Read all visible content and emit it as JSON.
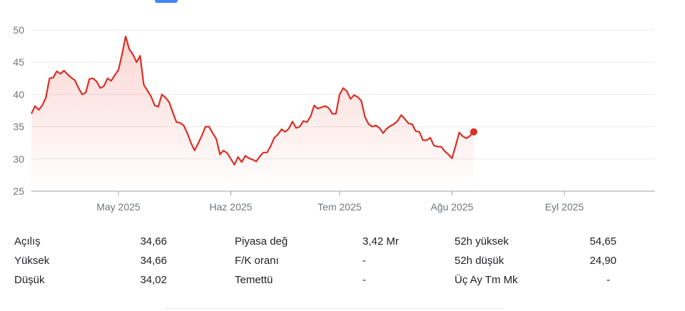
{
  "chart_data": {
    "type": "area",
    "y_ticks": [
      "50",
      "45",
      "40",
      "35",
      "30",
      "25"
    ],
    "y_tick_values": [
      50,
      45,
      40,
      35,
      30,
      25
    ],
    "ylim": [
      25,
      51
    ],
    "x_ticks": [
      "May 2025",
      "Haz 2025",
      "Tem 2025",
      "Ağu 2025",
      "Eyl 2025"
    ],
    "x_tick_dates": [
      "2025-05-01",
      "2025-06-01",
      "2025-07-01",
      "2025-08-01",
      "2025-09-01"
    ],
    "xlim": [
      "2025-04-07",
      "2025-09-26"
    ],
    "grid": true,
    "line_color": "#d93025",
    "series": [
      {
        "points": [
          [
            "2025-04-07",
            37.0
          ],
          [
            "2025-04-08",
            38.2
          ],
          [
            "2025-04-09",
            37.6
          ],
          [
            "2025-04-10",
            38.3
          ],
          [
            "2025-04-11",
            39.5
          ],
          [
            "2025-04-12",
            42.5
          ],
          [
            "2025-04-13",
            42.6
          ],
          [
            "2025-04-14",
            43.6
          ],
          [
            "2025-04-15",
            43.2
          ],
          [
            "2025-04-16",
            43.7
          ],
          [
            "2025-04-17",
            43.1
          ],
          [
            "2025-04-18",
            42.6
          ],
          [
            "2025-04-19",
            42.2
          ],
          [
            "2025-04-20",
            41.0
          ],
          [
            "2025-04-21",
            40.0
          ],
          [
            "2025-04-22",
            40.3
          ],
          [
            "2025-04-23",
            42.4
          ],
          [
            "2025-04-24",
            42.5
          ],
          [
            "2025-04-25",
            42.0
          ],
          [
            "2025-04-26",
            41.0
          ],
          [
            "2025-04-27",
            41.3
          ],
          [
            "2025-04-28",
            42.5
          ],
          [
            "2025-04-29",
            42.1
          ],
          [
            "2025-04-30",
            43.0
          ],
          [
            "2025-05-01",
            43.8
          ],
          [
            "2025-05-02",
            46.2
          ],
          [
            "2025-05-03",
            49.0
          ],
          [
            "2025-05-04",
            47.0
          ],
          [
            "2025-05-05",
            46.2
          ],
          [
            "2025-05-06",
            45.0
          ],
          [
            "2025-05-07",
            46.0
          ],
          [
            "2025-05-08",
            41.5
          ],
          [
            "2025-05-09",
            40.6
          ],
          [
            "2025-05-10",
            39.7
          ],
          [
            "2025-05-11",
            38.3
          ],
          [
            "2025-05-12",
            38.1
          ],
          [
            "2025-05-13",
            40.0
          ],
          [
            "2025-05-14",
            39.5
          ],
          [
            "2025-05-15",
            38.8
          ],
          [
            "2025-05-16",
            37.2
          ],
          [
            "2025-05-17",
            35.7
          ],
          [
            "2025-05-18",
            35.6
          ],
          [
            "2025-05-19",
            35.2
          ],
          [
            "2025-05-20",
            34.0
          ],
          [
            "2025-05-21",
            32.5
          ],
          [
            "2025-05-22",
            31.3
          ],
          [
            "2025-05-23",
            32.4
          ],
          [
            "2025-05-24",
            33.6
          ],
          [
            "2025-05-25",
            35.0
          ],
          [
            "2025-05-26",
            35.0
          ],
          [
            "2025-05-27",
            34.0
          ],
          [
            "2025-05-28",
            33.1
          ],
          [
            "2025-05-29",
            30.7
          ],
          [
            "2025-05-30",
            31.3
          ],
          [
            "2025-05-31",
            30.9
          ],
          [
            "2025-06-01",
            30.0
          ],
          [
            "2025-06-02",
            29.1
          ],
          [
            "2025-06-03",
            30.3
          ],
          [
            "2025-06-04",
            29.5
          ],
          [
            "2025-06-05",
            30.5
          ],
          [
            "2025-06-06",
            30.1
          ],
          [
            "2025-06-07",
            29.9
          ],
          [
            "2025-06-08",
            29.6
          ],
          [
            "2025-06-09",
            30.4
          ],
          [
            "2025-06-10",
            31.0
          ],
          [
            "2025-06-11",
            31.0
          ],
          [
            "2025-06-12",
            32.0
          ],
          [
            "2025-06-13",
            33.3
          ],
          [
            "2025-06-14",
            33.8
          ],
          [
            "2025-06-15",
            34.6
          ],
          [
            "2025-06-16",
            34.2
          ],
          [
            "2025-06-17",
            34.7
          ],
          [
            "2025-06-18",
            35.8
          ],
          [
            "2025-06-19",
            34.8
          ],
          [
            "2025-06-20",
            35.0
          ],
          [
            "2025-06-21",
            35.9
          ],
          [
            "2025-06-22",
            35.7
          ],
          [
            "2025-06-23",
            36.6
          ],
          [
            "2025-06-24",
            38.3
          ],
          [
            "2025-06-25",
            37.8
          ],
          [
            "2025-06-26",
            38.0
          ],
          [
            "2025-06-27",
            38.2
          ],
          [
            "2025-06-28",
            37.9
          ],
          [
            "2025-06-29",
            37.0
          ],
          [
            "2025-06-30",
            37.0
          ],
          [
            "2025-07-01",
            40.0
          ],
          [
            "2025-07-02",
            41.0
          ],
          [
            "2025-07-03",
            40.5
          ],
          [
            "2025-07-04",
            39.3
          ],
          [
            "2025-07-05",
            39.9
          ],
          [
            "2025-07-06",
            39.6
          ],
          [
            "2025-07-07",
            39.0
          ],
          [
            "2025-07-08",
            36.5
          ],
          [
            "2025-07-09",
            35.4
          ],
          [
            "2025-07-10",
            35.0
          ],
          [
            "2025-07-11",
            35.2
          ],
          [
            "2025-07-12",
            34.8
          ],
          [
            "2025-07-13",
            34.0
          ],
          [
            "2025-07-14",
            34.7
          ],
          [
            "2025-07-15",
            35.1
          ],
          [
            "2025-07-16",
            35.4
          ],
          [
            "2025-07-17",
            35.9
          ],
          [
            "2025-07-18",
            36.8
          ],
          [
            "2025-07-19",
            36.2
          ],
          [
            "2025-07-20",
            35.5
          ],
          [
            "2025-07-21",
            35.4
          ],
          [
            "2025-07-22",
            34.3
          ],
          [
            "2025-07-23",
            34.2
          ],
          [
            "2025-07-24",
            32.9
          ],
          [
            "2025-07-25",
            32.9
          ],
          [
            "2025-07-26",
            33.3
          ],
          [
            "2025-07-27",
            32.1
          ],
          [
            "2025-07-28",
            31.9
          ],
          [
            "2025-07-29",
            31.9
          ],
          [
            "2025-07-30",
            31.2
          ],
          [
            "2025-07-31",
            30.7
          ],
          [
            "2025-08-01",
            30.1
          ],
          [
            "2025-08-02",
            32.0
          ],
          [
            "2025-08-03",
            34.1
          ],
          [
            "2025-08-04",
            33.5
          ],
          [
            "2025-08-05",
            33.2
          ],
          [
            "2025-08-06",
            33.6
          ],
          [
            "2025-08-07",
            34.2
          ]
        ]
      }
    ]
  },
  "stats": {
    "col1": [
      {
        "label": "Açılış",
        "value": "34,66"
      },
      {
        "label": "Yüksek",
        "value": "34,66"
      },
      {
        "label": "Düşük",
        "value": "34,02"
      }
    ],
    "col2": [
      {
        "label": "Piyasa değ",
        "value": "3,42 Mr"
      },
      {
        "label": "F/K oranı",
        "value": "-"
      },
      {
        "label": "Temettü",
        "value": "-"
      }
    ],
    "col3": [
      {
        "label": "52h yüksek",
        "value": "54,65"
      },
      {
        "label": "52h düşük",
        "value": "24,90"
      },
      {
        "label": "Üç Ay Tm Mk",
        "value": "-"
      }
    ]
  }
}
